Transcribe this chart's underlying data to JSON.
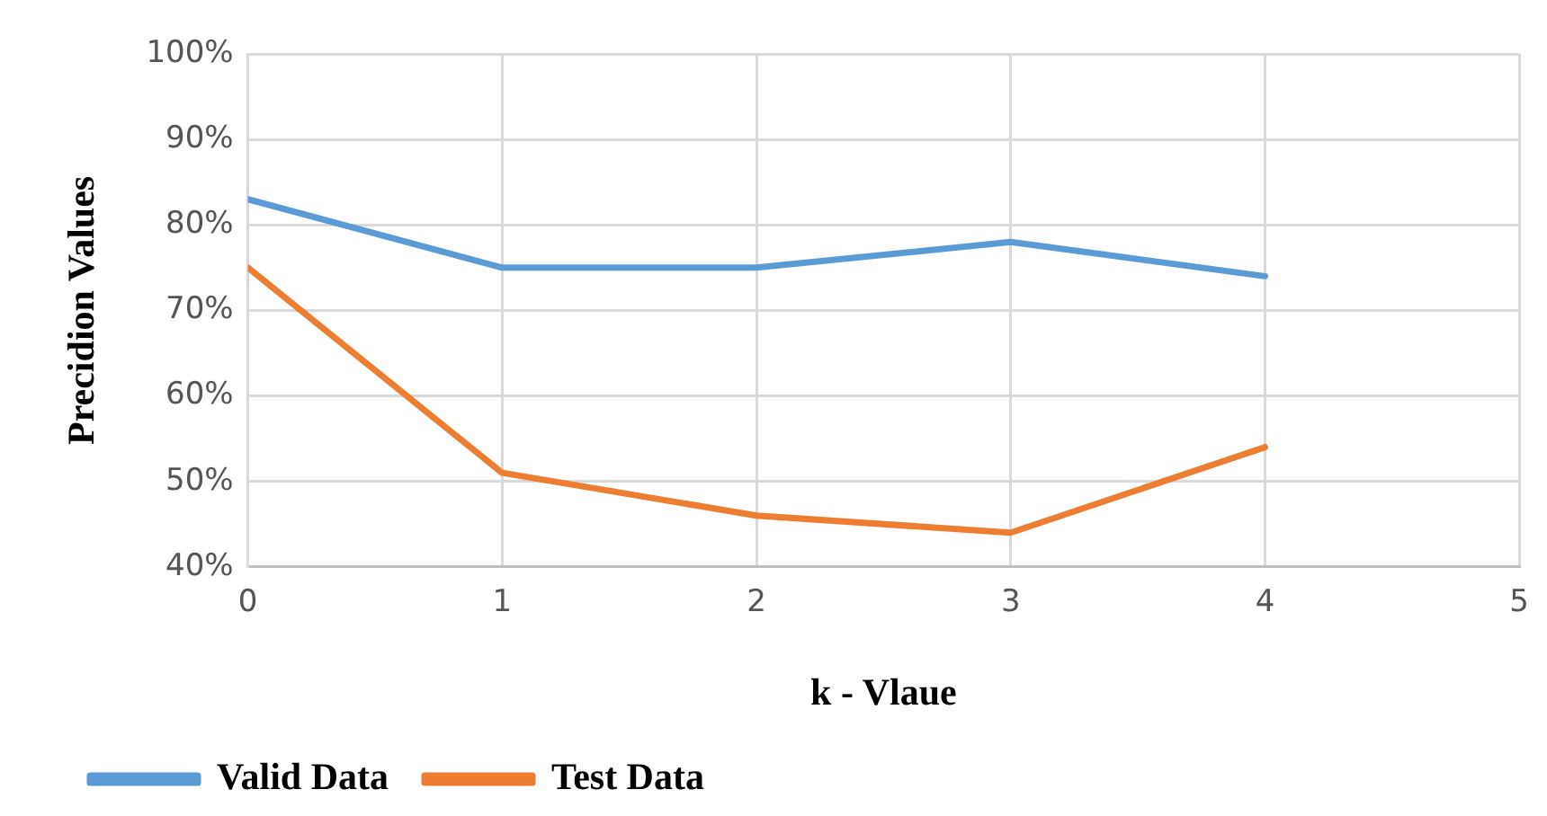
{
  "chart_data": {
    "type": "line",
    "xlabel": "k - Vlaue",
    "ylabel": "Precidion Values",
    "x": [
      0,
      1,
      2,
      3,
      4
    ],
    "series": [
      {
        "name": "Valid Data",
        "color": "#5b9bd5",
        "values": [
          83,
          75,
          75,
          78,
          74
        ]
      },
      {
        "name": "Test Data",
        "color": "#ed7d31",
        "values": [
          75,
          51,
          46,
          44,
          54
        ]
      }
    ],
    "xlim": [
      0,
      5
    ],
    "xticks": [
      0,
      1,
      2,
      3,
      4,
      5
    ],
    "ylim": [
      40,
      100
    ],
    "yticks": [
      {
        "value": 40,
        "label": "40%"
      },
      {
        "value": 50,
        "label": "50%"
      },
      {
        "value": 60,
        "label": "60%"
      },
      {
        "value": 70,
        "label": "70%"
      },
      {
        "value": 80,
        "label": "80%"
      },
      {
        "value": 90,
        "label": "90%"
      },
      {
        "value": 100,
        "label": "100%"
      }
    ],
    "grid": true,
    "legend": "bottom left",
    "marker": "none",
    "line_style": "solid"
  }
}
